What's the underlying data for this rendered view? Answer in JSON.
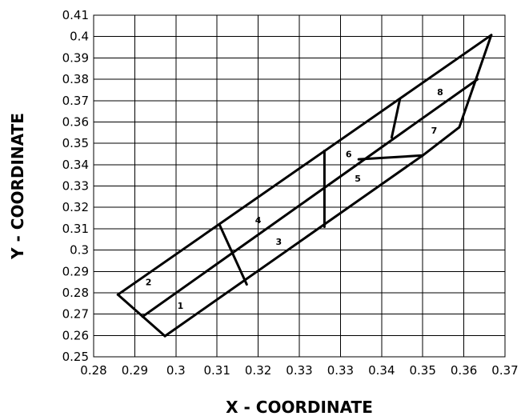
{
  "chart_data": {
    "type": "line",
    "title": "",
    "xlabel": "X - COORDINATE",
    "ylabel": "Y - COORDINATE",
    "xlim": [
      0.28,
      0.37
    ],
    "ylim": [
      0.25,
      0.41
    ],
    "grid": true,
    "x_ticks": [
      "0.28",
      "0.29",
      "0.3",
      "0.31",
      "0.32",
      "0.33",
      "0.33",
      "0.34",
      "0.35",
      "0.36",
      "0.37"
    ],
    "y_ticks": [
      "0.25",
      "0.26",
      "0.27",
      "0.28",
      "0.29",
      "0.3",
      "0.31",
      "0.32",
      "0.33",
      "0.34",
      "0.35",
      "0.36",
      "0.37",
      "0.38",
      "0.39",
      "0.4",
      "0.41"
    ],
    "segments": [
      {
        "id": "outline-top",
        "points": [
          [
            0.2853,
            0.2791
          ],
          [
            0.367,
            0.4007
          ]
        ]
      },
      {
        "id": "outline-right",
        "points": [
          [
            0.367,
            0.4007
          ],
          [
            0.36,
            0.3575
          ]
        ]
      },
      {
        "id": "outline-lower-right",
        "points": [
          [
            0.36,
            0.3575
          ],
          [
            0.352,
            0.3443
          ]
        ]
      },
      {
        "id": "outline-bottom",
        "points": [
          [
            0.352,
            0.3443
          ],
          [
            0.2956,
            0.2597
          ]
        ]
      },
      {
        "id": "outline-left",
        "points": [
          [
            0.2956,
            0.2597
          ],
          [
            0.2853,
            0.2791
          ]
        ]
      },
      {
        "id": "midline",
        "points": [
          [
            0.2907,
            0.2688
          ],
          [
            0.364,
            0.38
          ]
        ]
      },
      {
        "id": "divider-1-2-4",
        "points": [
          [
            0.3076,
            0.3116
          ],
          [
            0.3135,
            0.2839
          ]
        ]
      },
      {
        "id": "divider-3-4-5-6",
        "points": [
          [
            0.3305,
            0.3465
          ],
          [
            0.3305,
            0.3109
          ]
        ]
      },
      {
        "id": "divider-5-7",
        "points": [
          [
            0.338,
            0.3425
          ],
          [
            0.352,
            0.3443
          ]
        ]
      },
      {
        "id": "divider-6-8",
        "points": [
          [
            0.347,
            0.3705
          ],
          [
            0.3452,
            0.3527
          ]
        ]
      }
    ],
    "region_labels": [
      {
        "text": "1",
        "x": 0.299,
        "y": 0.274
      },
      {
        "text": "2",
        "x": 0.292,
        "y": 0.285
      },
      {
        "text": "3",
        "x": 0.3205,
        "y": 0.304
      },
      {
        "text": "4",
        "x": 0.316,
        "y": 0.314
      },
      {
        "text": "5",
        "x": 0.3378,
        "y": 0.3335
      },
      {
        "text": "6",
        "x": 0.3358,
        "y": 0.345
      },
      {
        "text": "7",
        "x": 0.3545,
        "y": 0.356
      },
      {
        "text": "8",
        "x": 0.3558,
        "y": 0.374
      }
    ]
  }
}
